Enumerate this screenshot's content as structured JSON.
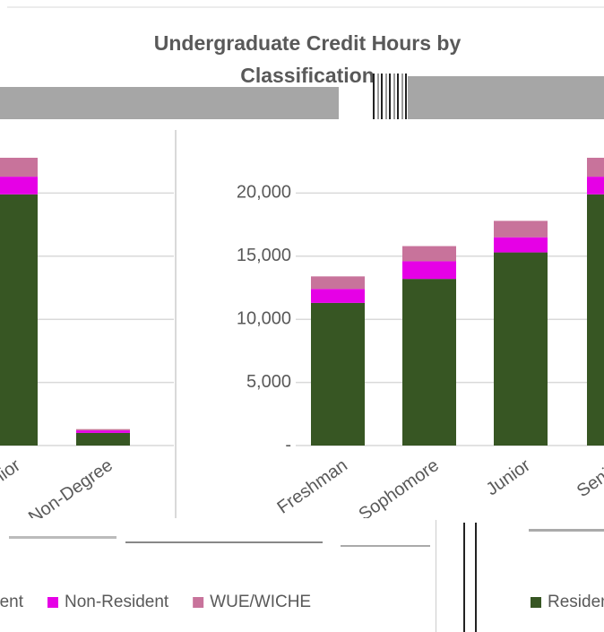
{
  "title": "Undergraduate Credit Hours by Classification",
  "chart_data": [
    {
      "type": "stacked-bar",
      "categories": [
        "Senior",
        "Non-Degree"
      ],
      "series": [
        {
          "name": "Resident",
          "color": "#375623",
          "values": [
            19900,
            1000
          ]
        },
        {
          "name": "Non-Resident",
          "color": "#e600e6",
          "values": [
            1400,
            200
          ]
        },
        {
          "name": "WUE/WICHE",
          "color": "#c8739b",
          "values": [
            1500,
            100
          ]
        }
      ],
      "ylim": [
        0,
        25000
      ],
      "yticks": [
        0,
        5000,
        10000,
        15000,
        20000
      ],
      "grid": true
    },
    {
      "type": "stacked-bar",
      "categories": [
        "Freshman",
        "Sophomore",
        "Junior",
        "Senior"
      ],
      "series": [
        {
          "name": "Resident",
          "color": "#375623",
          "values": [
            11300,
            13200,
            15300,
            19900
          ]
        },
        {
          "name": "Non-Resident",
          "color": "#e600e6",
          "values": [
            1100,
            1400,
            1200,
            1400
          ]
        },
        {
          "name": "WUE/WICHE",
          "color": "#c8739b",
          "values": [
            1000,
            1200,
            1300,
            1500
          ]
        }
      ],
      "ylim": [
        0,
        25000
      ],
      "yticks": [
        {
          "value": 0,
          "label": "-"
        },
        {
          "value": 5000,
          "label": "5,000"
        },
        {
          "value": 10000,
          "label": "10,000"
        },
        {
          "value": 15000,
          "label": "15,000"
        },
        {
          "value": 20000,
          "label": "20,000"
        }
      ],
      "grid": true
    }
  ]
}
